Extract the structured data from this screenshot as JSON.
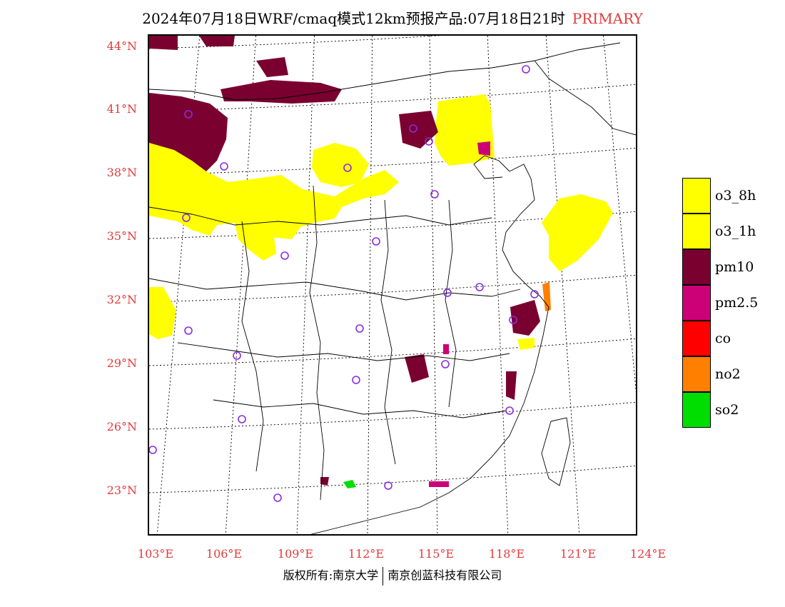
{
  "title": {
    "text": "2024年07月18日WRF/cmaq模式12km预报产品:07月18日21时",
    "tag": "PRIMARY",
    "tag_color": "#e23a3a"
  },
  "map": {
    "projection": "lambert-conformal",
    "lon_range": [
      102.5,
      124
    ],
    "lat_range": [
      20.8,
      44.3
    ],
    "lat_labels": [
      "44°N",
      "41°N",
      "38°N",
      "35°N",
      "32°N",
      "29°N",
      "26°N",
      "23°N"
    ],
    "lon_labels": [
      "103°E",
      "106°E",
      "109°E",
      "112°E",
      "115°E",
      "118°E",
      "121°E",
      "124°E"
    ],
    "gridline_style": "dotted",
    "label_color": "#e23a3a",
    "background": "#ffffff"
  },
  "legend": {
    "items": [
      {
        "label": "o3_8h",
        "color": "#ffff00"
      },
      {
        "label": "o3_1h",
        "color": "#ffff00"
      },
      {
        "label": "pm10",
        "color": "#7a0030"
      },
      {
        "label": "pm2.5",
        "color": "#cc0077"
      },
      {
        "label": "co",
        "color": "#ff0000"
      },
      {
        "label": "no2",
        "color": "#ff7f00"
      },
      {
        "label": "so2",
        "color": "#00dd00"
      }
    ]
  },
  "footer": {
    "left": "版权所有:南京大学",
    "right": "南京创蓝科技有限公司"
  }
}
